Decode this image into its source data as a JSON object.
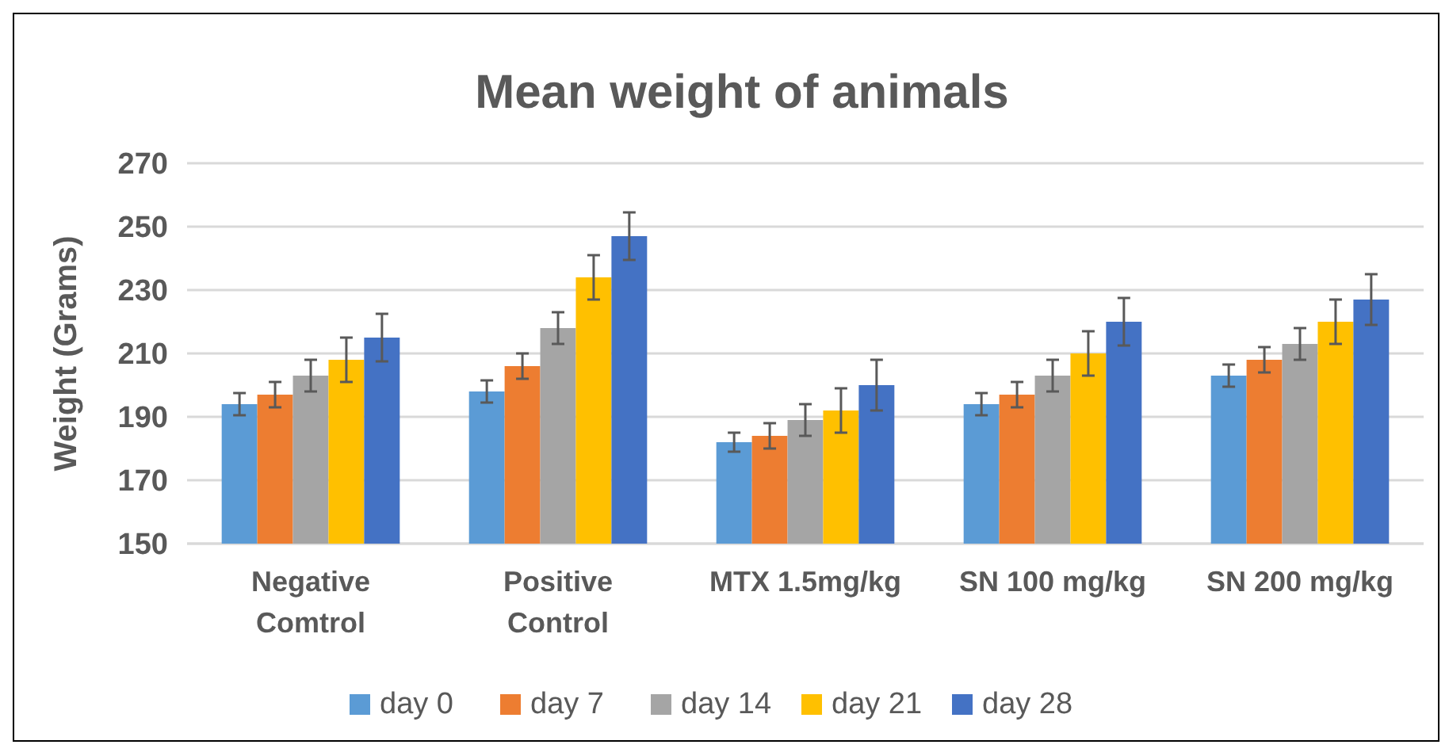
{
  "chart_data": {
    "type": "bar",
    "title": "Mean weight of animals",
    "ylabel": "Weight (Grams)",
    "categories": [
      "Negative Comtrol",
      "Positive Control",
      "MTX 1.5mg/kg",
      "SN 100 mg/kg",
      "SN 200 mg/kg"
    ],
    "series": [
      {
        "name": "day 0",
        "color": "#5b9bd5",
        "values": [
          194,
          198,
          182,
          194,
          203
        ],
        "errors": [
          3.5,
          3.5,
          3,
          3.5,
          3.5
        ]
      },
      {
        "name": "day 7",
        "color": "#ed7d31",
        "values": [
          197,
          206,
          184,
          197,
          208
        ],
        "errors": [
          4,
          4,
          4,
          4,
          4
        ]
      },
      {
        "name": "day 14",
        "color": "#a5a5a5",
        "values": [
          203,
          218,
          189,
          203,
          213
        ],
        "errors": [
          5,
          5,
          5,
          5,
          5
        ]
      },
      {
        "name": "day 21",
        "color": "#ffc000",
        "values": [
          208,
          234,
          192,
          210,
          220
        ],
        "errors": [
          7,
          7,
          7,
          7,
          7
        ]
      },
      {
        "name": "day 28",
        "color": "#4472c4",
        "values": [
          215,
          247,
          200,
          220,
          227
        ],
        "errors": [
          7.5,
          7.5,
          8,
          7.5,
          8
        ]
      }
    ],
    "ylim": [
      150,
      270
    ],
    "yticks": [
      150,
      170,
      190,
      210,
      230,
      250,
      270
    ],
    "grid": "y",
    "legend": "bottom"
  }
}
